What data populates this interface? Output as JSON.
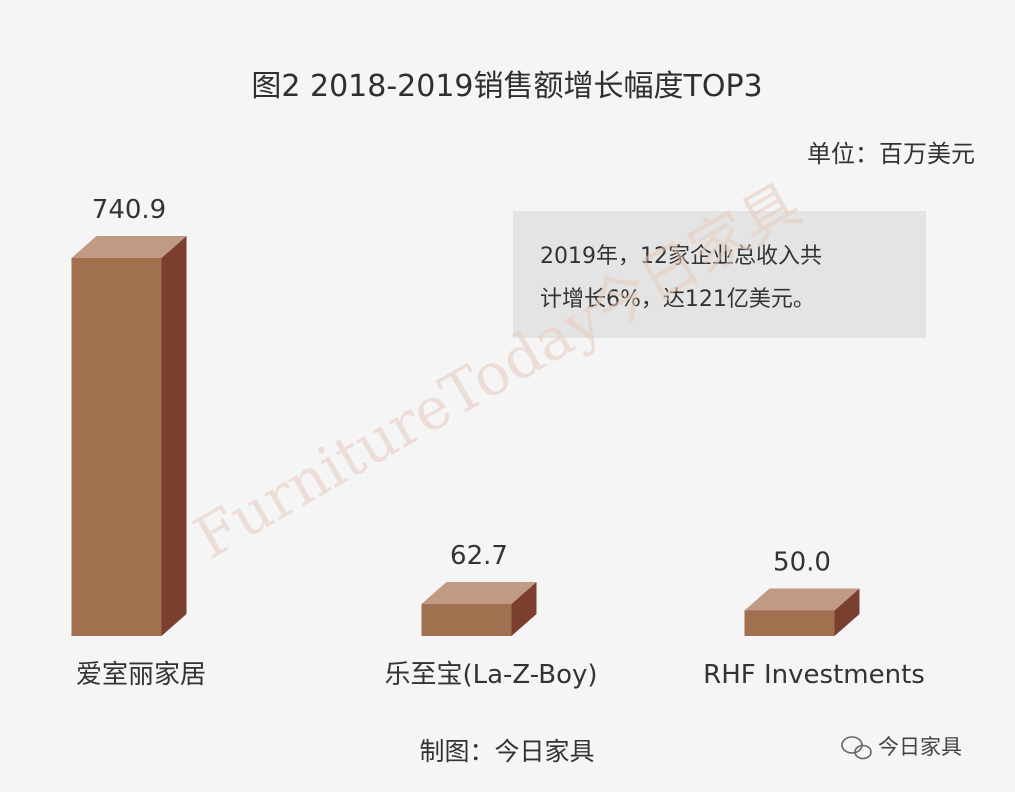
{
  "chart_data": {
    "type": "bar",
    "title": "图2  2018-2019销售额增长幅度TOP3",
    "unit": "单位：百万美元",
    "categories": [
      "爱室丽家居",
      "乐至宝(La-Z-Boy)",
      "RHF Investments"
    ],
    "values": [
      740.9,
      62.7,
      50.0
    ],
    "value_labels": [
      "740.9",
      "62.7",
      "50.0"
    ],
    "ylim": [
      0,
      800
    ],
    "annotation": {
      "line1": "2019年，12家企业总收入共",
      "line2": "计增长6%，达121亿美元。"
    },
    "colors": {
      "front": "#a0704f",
      "side": "#7a3f2e",
      "top": "#c19a86",
      "note_bg": "#e4e4e4"
    }
  },
  "footer": {
    "credit": "制图：今日家具",
    "brand": "今日家具"
  },
  "watermark": {
    "text": "FurnitureToday",
    "cn": "今日家具"
  }
}
